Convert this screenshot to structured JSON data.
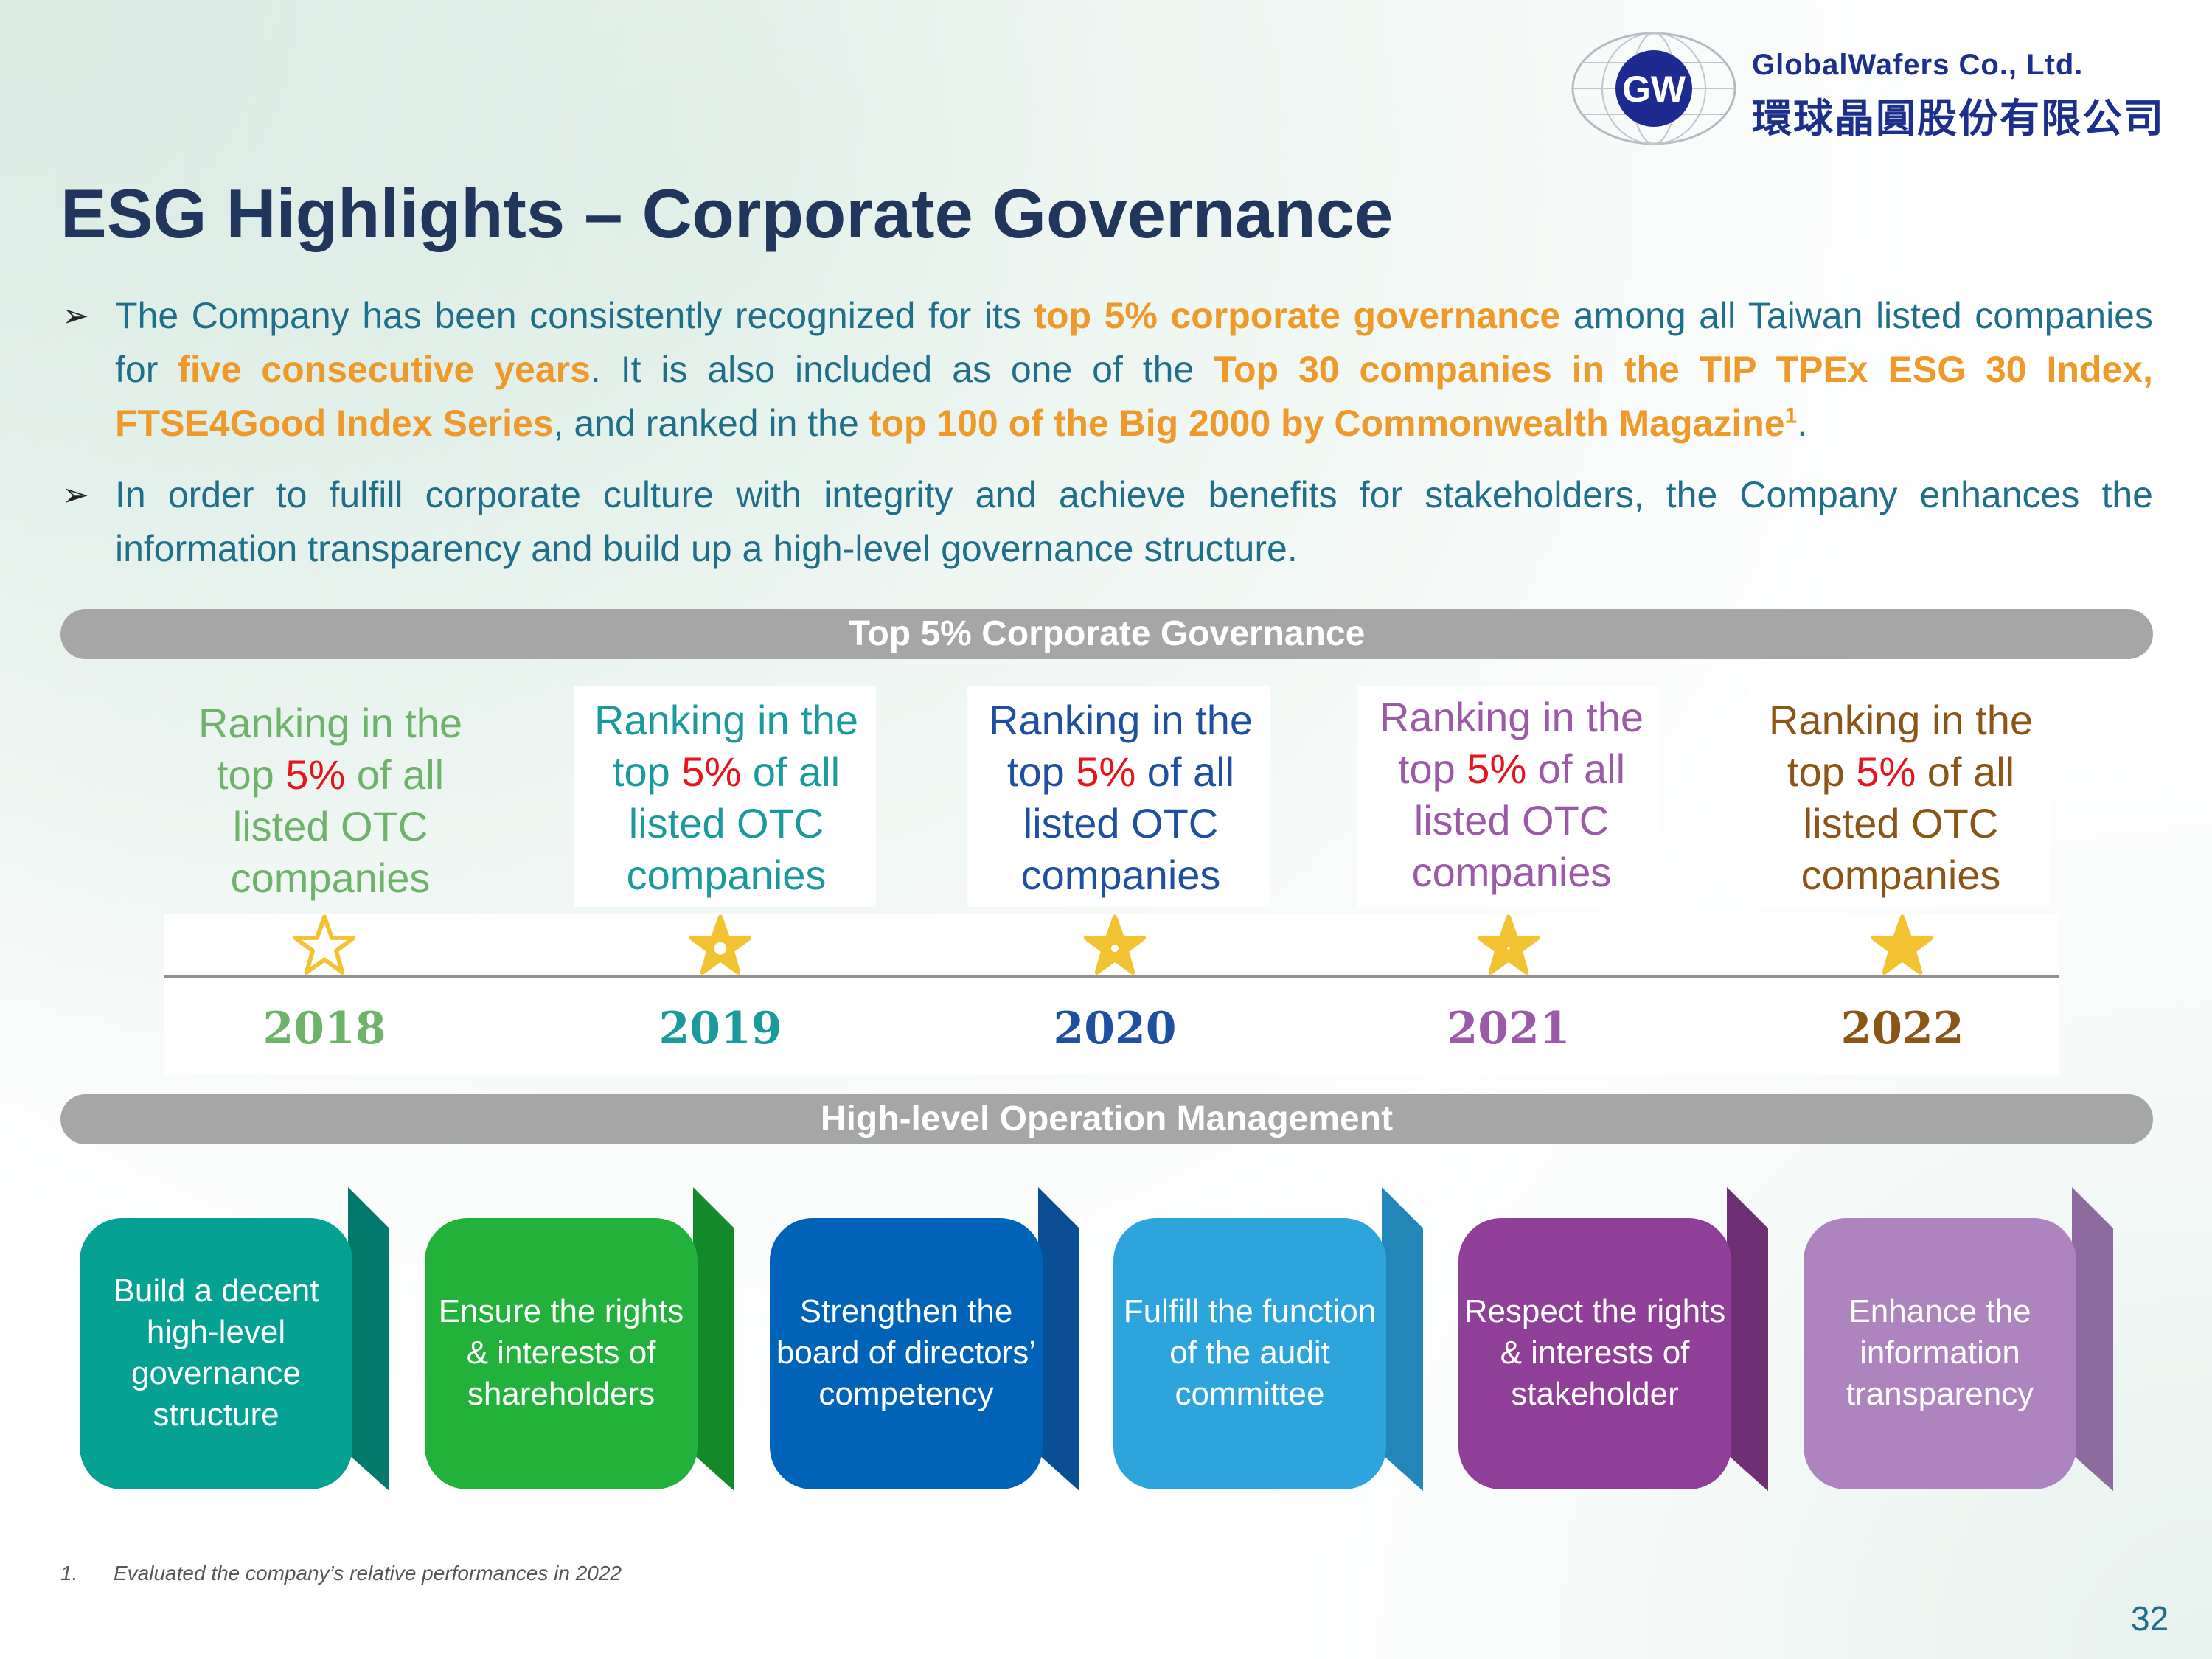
{
  "logo": {
    "mark": "GW",
    "name_en": "GlobalWafers Co., Ltd.",
    "name_zh": "環球晶圓股份有限公司"
  },
  "title": "ESG Highlights – Corporate Governance",
  "bullets": {
    "b1": {
      "t1": "The Company has been consistently recognized for its ",
      "h1": "top 5% corporate governance",
      "t2": " among all Taiwan listed companies for ",
      "h2": "five consecutive years",
      "t3": ". It is also included as one of the ",
      "h3": "Top 30 companies in the TIP TPEx ESG 30 Index, FTSE4Good Index Series",
      "t4": ", and ranked in the ",
      "h4": "top 100 of the Big 2000 by Commonwealth Magazine",
      "sup": "1",
      "t5": "."
    },
    "b2": "In order to fulfill corporate culture with integrity and achieve benefits for stakeholders, the Company enhances the information transparency and build up a high-level governance structure."
  },
  "banners": {
    "governance": "Top 5% Corporate Governance",
    "operation": "High-level Operation Management"
  },
  "rankings": [
    {
      "year": "2018",
      "pre": "Ranking in the top ",
      "pct": "5%",
      "post": " of all listed OTC companies",
      "color": "#6db36a"
    },
    {
      "year": "2019",
      "pre": "Ranking in the top ",
      "pct": "5%",
      "post": " of all listed OTC companies",
      "color": "#1a9a9c"
    },
    {
      "year": "2020",
      "pre": "Ranking in the top ",
      "pct": "5%",
      "post": " of all listed OTC companies",
      "color": "#1e4fa0"
    },
    {
      "year": "2021",
      "pre": "Ranking in the top ",
      "pct": "5%",
      "post": " of all listed OTC companies",
      "color": "#9a5aa8"
    },
    {
      "year": "2022",
      "pre": "Ranking in the top ",
      "pct": "5%",
      "post": " of all listed OTC companies",
      "color": "#8a5516"
    }
  ],
  "operations": [
    {
      "label": "Build a decent high-level governance structure",
      "color": "#05a193",
      "dark": "#03786d"
    },
    {
      "label": "Ensure the rights & interests of shareholders",
      "color": "#22b13a",
      "dark": "#13892a"
    },
    {
      "label": "Strengthen the board of directors’ competency",
      "color": "#0063b8",
      "dark": "#0a4f93"
    },
    {
      "label": "Fulfill the function of the audit committee",
      "color": "#2ea4dd",
      "dark": "#2286b8"
    },
    {
      "label": "Respect the rights & interests of stakeholder",
      "color": "#8f3f97",
      "dark": "#6e2f75"
    },
    {
      "label": "Enhance the information transparency",
      "color": "#ad84be",
      "dark": "#8e6aa0"
    }
  ],
  "footnote": {
    "num": "1.",
    "text": "Evaluated the company’s relative performances in 2022"
  },
  "page_number": "32"
}
